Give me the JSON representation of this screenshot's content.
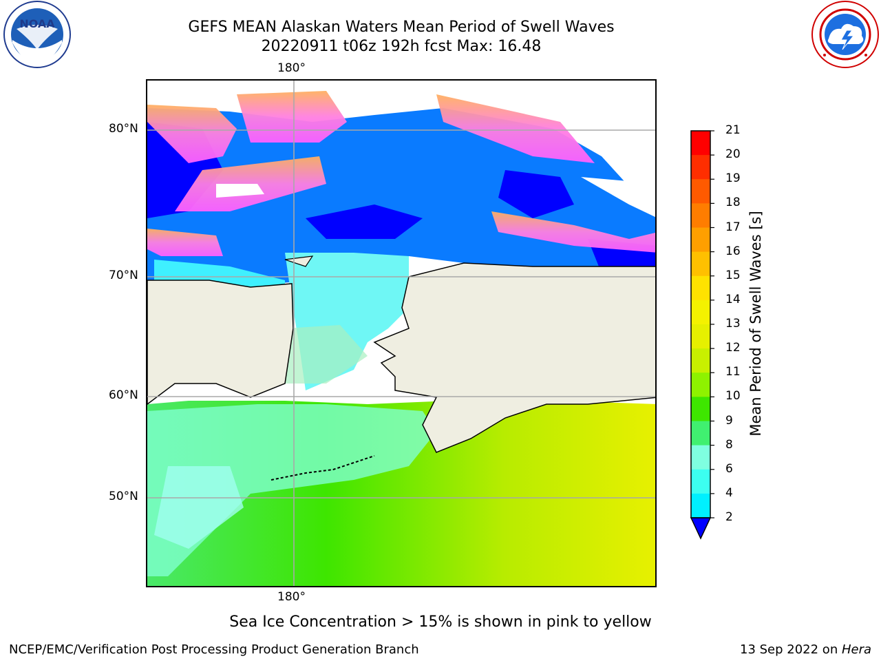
{
  "title_line1": "GEFS MEAN Alaskan Waters Mean Period of Swell Waves",
  "title_line2": "20220911 t06z 192h fcst   Max: 16.48",
  "logos": {
    "left": {
      "icon": "noaa-logo",
      "text": "NOAA",
      "ring_text": "NATIONAL OCEANIC AND ATMOSPHERIC ADMINISTRATION · U.S. DEPARTMENT OF COMMERCE"
    },
    "right": {
      "icon": "nws-logo",
      "ring_text": "NATIONAL WEATHER SERVICE"
    }
  },
  "map": {
    "lon_label_top": "180°",
    "lon_label_bottom": "180°",
    "lat_labels": [
      "80°N",
      "70°N",
      "60°N",
      "50°N"
    ]
  },
  "colorbar": {
    "label": "Mean Period of Swell Waves [s]",
    "ticks": [
      "21",
      "20",
      "19",
      "18",
      "17",
      "16",
      "15",
      "14",
      "13",
      "12",
      "11",
      "10",
      "9",
      "8",
      "6",
      "4",
      "2"
    ],
    "colors": [
      "#ff0000",
      "#ff2e00",
      "#ff5a00",
      "#ff7d00",
      "#ff9f00",
      "#ffc000",
      "#ffe200",
      "#f4f200",
      "#e6f000",
      "#c8f000",
      "#8ef200",
      "#3ee600",
      "#40f070",
      "#7fffe0",
      "#3cfff0",
      "#00f0ff",
      "#00ccff",
      "#007bff"
    ],
    "extend_color": "#0000ff"
  },
  "caption": "Sea Ice Concentration > 15% is shown in pink to yellow",
  "footer_left": "NCEP/EMC/Verification Post Processing Product Generation Branch",
  "footer_right_prefix": "13 Sep 2022 on ",
  "footer_right_machine": "Hera"
}
